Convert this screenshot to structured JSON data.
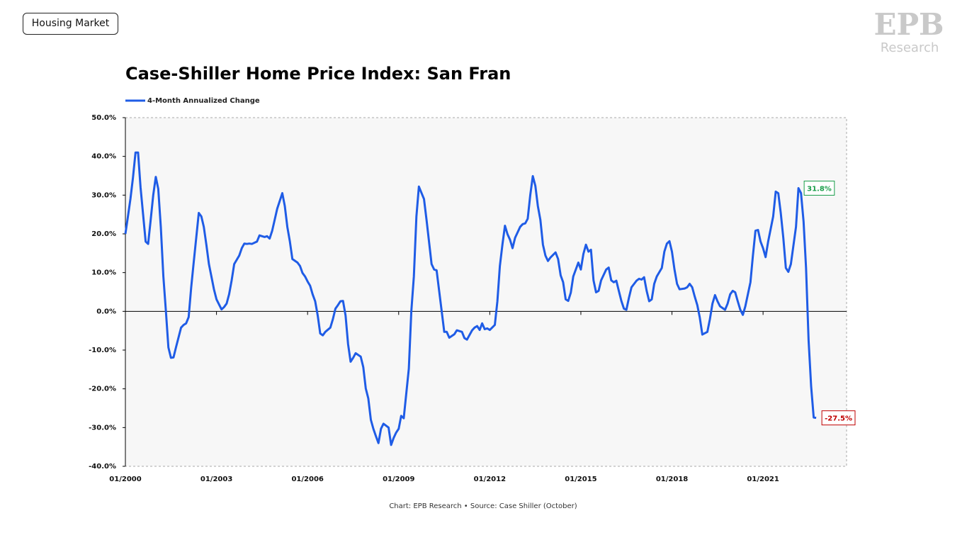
{
  "header": {
    "tag": "Housing Market",
    "logo": "EPB",
    "logo_sub": "Research"
  },
  "chart_data": {
    "type": "line",
    "title": "Case-Shiller Home Price Index: San Fran",
    "caption": "Chart: EPB Research  •  Source: Case Shiller (October)",
    "x": [
      "01/2000",
      "02/2000",
      "03/2000",
      "04/2000",
      "05/2000",
      "06/2000",
      "07/2000",
      "08/2000",
      "09/2000",
      "10/2000",
      "11/2000",
      "12/2000",
      "01/2001",
      "02/2001",
      "03/2001",
      "04/2001",
      "05/2001",
      "06/2001",
      "07/2001",
      "08/2001",
      "09/2001",
      "11/2001",
      "12/2001",
      "01/2002",
      "02/2002",
      "03/2002",
      "04/2002",
      "05/2002",
      "06/2002",
      "07/2002",
      "08/2002",
      "09/2002",
      "10/2002",
      "11/2002",
      "12/2002",
      "01/2003",
      "03/2003",
      "04/2003",
      "05/2003",
      "06/2003",
      "07/2003",
      "08/2003",
      "10/2003",
      "11/2003",
      "12/2003",
      "01/2004",
      "02/2004",
      "03/2004",
      "05/2004",
      "06/2004",
      "07/2004",
      "08/2004",
      "09/2004",
      "10/2004",
      "11/2004",
      "12/2004",
      "01/2005",
      "03/2005",
      "04/2005",
      "05/2005",
      "06/2005",
      "07/2005",
      "09/2005",
      "10/2005",
      "11/2005",
      "12/2005",
      "01/2006",
      "02/2006",
      "03/2006",
      "04/2006",
      "05/2006",
      "06/2006",
      "07/2006",
      "08/2006",
      "10/2006",
      "11/2006",
      "12/2006",
      "01/2007",
      "02/2007",
      "03/2007",
      "04/2007",
      "05/2007",
      "06/2007",
      "07/2007",
      "08/2007",
      "10/2007",
      "11/2007",
      "12/2007",
      "01/2008",
      "02/2008",
      "03/2008",
      "04/2008",
      "05/2008",
      "06/2008",
      "07/2008",
      "09/2008",
      "10/2008",
      "11/2008",
      "12/2008",
      "01/2009",
      "02/2009",
      "03/2009",
      "04/2009",
      "05/2009",
      "06/2009",
      "07/2009",
      "08/2009",
      "09/2009",
      "11/2009",
      "12/2009",
      "01/2010",
      "02/2010",
      "03/2010",
      "04/2010",
      "05/2010",
      "06/2010",
      "07/2010",
      "08/2010",
      "09/2010",
      "11/2010",
      "12/2010",
      "01/2011",
      "02/2011",
      "03/2011",
      "04/2011",
      "06/2011",
      "07/2011",
      "08/2011",
      "09/2011",
      "10/2011",
      "11/2011",
      "12/2011",
      "01/2012",
      "03/2012",
      "04/2012",
      "05/2012",
      "06/2012",
      "07/2012",
      "08/2012",
      "09/2012",
      "10/2012",
      "11/2012",
      "01/2013",
      "02/2013",
      "03/2013",
      "04/2013",
      "05/2013",
      "06/2013",
      "07/2013",
      "08/2013",
      "09/2013",
      "10/2013",
      "11/2013",
      "12/2013",
      "01/2014",
      "03/2014",
      "04/2014",
      "05/2014",
      "06/2014",
      "07/2014",
      "08/2014",
      "09/2014",
      "10/2014",
      "12/2014",
      "01/2015",
      "02/2015",
      "03/2015",
      "04/2015",
      "05/2015",
      "06/2015",
      "07/2015",
      "08/2015",
      "09/2015",
      "11/2015",
      "12/2015",
      "01/2016",
      "02/2016",
      "03/2016",
      "04/2016",
      "05/2016",
      "06/2016",
      "07/2016",
      "08/2016",
      "09/2016",
      "11/2016",
      "12/2016",
      "01/2017",
      "02/2017",
      "03/2017",
      "04/2017",
      "05/2017",
      "06/2017",
      "07/2017",
      "09/2017",
      "10/2017",
      "11/2017",
      "12/2017",
      "01/2018",
      "02/2018",
      "03/2018",
      "04/2018",
      "06/2018",
      "07/2018",
      "08/2018",
      "09/2018",
      "10/2018",
      "11/2018",
      "12/2018",
      "01/2019",
      "03/2019",
      "04/2019",
      "05/2019",
      "06/2019",
      "07/2019",
      "08/2019",
      "10/2019",
      "11/2019",
      "12/2019",
      "01/2020",
      "02/2020",
      "03/2020",
      "04/2020",
      "05/2020",
      "06/2020",
      "08/2020",
      "09/2020",
      "10/2020",
      "11/2020",
      "12/2020",
      "01/2021",
      "02/2021",
      "03/2021",
      "05/2021",
      "06/2021",
      "07/2021",
      "08/2021",
      "09/2021",
      "10/2021",
      "11/2021",
      "12/2021",
      "02/2022",
      "03/2022",
      "04/2022",
      "05/2022",
      "06/2022",
      "07/2022",
      "08/2022",
      "09/2022",
      "10/2022"
    ],
    "series": [
      {
        "name": "4-Month Annualized Change",
        "color": "#1f5ce6",
        "values": [
          20,
          24.5,
          29,
          34.5,
          41,
          41,
          32,
          25,
          18,
          17.4,
          23.6,
          30,
          34.7,
          31.6,
          21.8,
          9,
          0,
          -9.3,
          -12,
          -11.9,
          -9.3,
          -4.2,
          -3.5,
          -3.1,
          -1.5,
          6.2,
          12.6,
          19,
          25.4,
          24.5,
          21.8,
          17.2,
          12.2,
          9,
          5.7,
          3.1,
          0.5,
          1.1,
          2,
          4.4,
          8,
          12.2,
          14.4,
          16.3,
          17.5,
          17.4,
          17.5,
          17.4,
          18,
          19.6,
          19.4,
          19.2,
          19.4,
          18.8,
          20.8,
          23.6,
          26.5,
          30.5,
          27.2,
          21.8,
          18,
          13.5,
          12.6,
          11.7,
          9.9,
          9,
          7.7,
          6.6,
          4.4,
          2.6,
          -1.1,
          -5.7,
          -6.2,
          -5.3,
          -4.2,
          -2,
          0.7,
          1.6,
          2.6,
          2.7,
          -1.1,
          -8.4,
          -13,
          -12,
          -10.8,
          -11.7,
          -14.4,
          -19.9,
          -22.5,
          -28,
          -30.3,
          -32.2,
          -34,
          -30.3,
          -29,
          -30,
          -34.5,
          -32.7,
          -31.3,
          -30.3,
          -27,
          -27.6,
          -21.2,
          -14.8,
          0,
          9,
          24.5,
          32.2,
          29,
          23.6,
          18,
          12.2,
          10.8,
          10.6,
          5.3,
          0,
          -5.3,
          -5.3,
          -6.8,
          -5.9,
          -4.9,
          -5.1,
          -5.3,
          -6.9,
          -7.3,
          -4.9,
          -4.2,
          -3.8,
          -4.8,
          -3.1,
          -4.6,
          -4.4,
          -4.8,
          -3.5,
          2.6,
          11.7,
          17.2,
          22.1,
          19.9,
          18.5,
          16.3,
          19,
          21.8,
          22.5,
          22.7,
          23.9,
          30,
          34.9,
          32.4,
          27.2,
          23.6,
          17.2,
          14.4,
          13,
          13.9,
          15.2,
          13.5,
          9.3,
          7.5,
          3.1,
          2.7,
          4.8,
          9,
          12.6,
          10.8,
          14.8,
          17.2,
          15.4,
          15.9,
          8,
          4.9,
          5.3,
          8,
          10.8,
          11.3,
          8,
          7.5,
          7.9,
          5.3,
          2.7,
          0.7,
          0.4,
          3.5,
          6.2,
          7.9,
          8.4,
          8.2,
          8.8,
          5.3,
          2.6,
          3.1,
          7.1,
          9,
          11.2,
          15.4,
          17.5,
          18.1,
          15.4,
          10.8,
          7.1,
          5.7,
          5.9,
          6.2,
          7.1,
          6.2,
          3.8,
          1.6,
          -1.6,
          -6,
          -5.3,
          -2,
          2,
          4.2,
          2.6,
          1.3,
          0.4,
          2,
          4.4,
          5.3,
          4.9,
          2.6,
          0.4,
          -0.9,
          1.3,
          7.5,
          14.4,
          20.8,
          21,
          18,
          16.3,
          14,
          18,
          24.5,
          30.9,
          30.5,
          25.4,
          19,
          11.2,
          10.2,
          12.2,
          21.8,
          31.8,
          30.5,
          23.2,
          11.2,
          -7.5,
          -19.4,
          -27.4,
          -27.5
        ]
      }
    ],
    "annotations": [
      {
        "x": "03/2022",
        "value": 31.8,
        "label": "31.8%",
        "color": "#1a9e4a"
      },
      {
        "x": "10/2022",
        "value": -27.5,
        "label": "-27.5%",
        "color": "#c00000"
      }
    ],
    "xlim": [
      "01/2000",
      "10/2023"
    ],
    "xticks": [
      "01/2000",
      "01/2003",
      "01/2006",
      "01/2009",
      "01/2012",
      "01/2015",
      "01/2018",
      "01/2021"
    ],
    "ylim": [
      -40,
      50
    ],
    "yticks": [
      {
        "value": -40,
        "label": "-40.0%"
      },
      {
        "value": -30,
        "label": "-30.0%"
      },
      {
        "value": -20,
        "label": "-20.0%"
      },
      {
        "value": -10,
        "label": "-10.0%"
      },
      {
        "value": 0,
        "label": "0.0%"
      },
      {
        "value": 10,
        "label": "10.0%"
      },
      {
        "value": 20,
        "label": "20.0%"
      },
      {
        "value": 30,
        "label": "30.0%"
      },
      {
        "value": 40,
        "label": "40.0%"
      },
      {
        "value": 50,
        "label": "50.0%"
      }
    ],
    "legend": "top-left",
    "background": "#f7f7f7"
  }
}
